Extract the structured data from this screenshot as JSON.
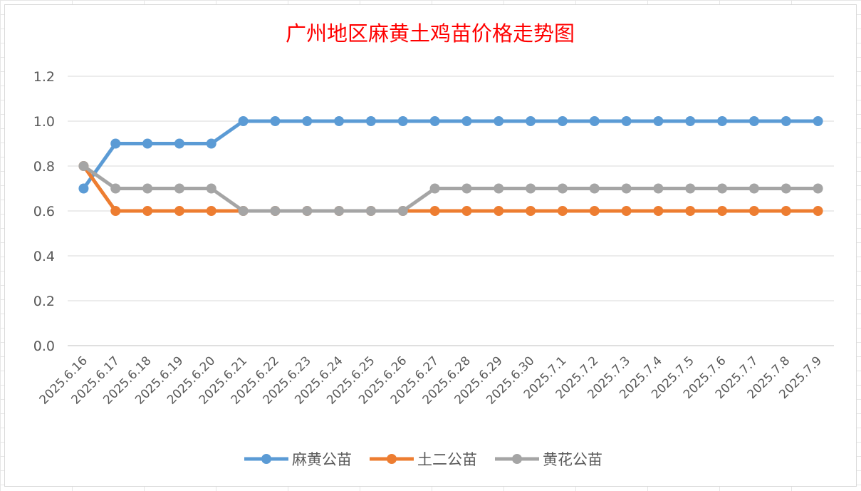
{
  "chart_data": {
    "type": "line",
    "title": "广州地区麻黄土鸡苗价格走势图",
    "xlabel": "",
    "ylabel": "",
    "categories": [
      "2025.6.16",
      "2025.6.17",
      "2025.6.18",
      "2025.6.19",
      "2025.6.20",
      "2025.6.21",
      "2025.6.22",
      "2025.6.23",
      "2025.6.24",
      "2025.6.25",
      "2025.6.26",
      "2025.6.27",
      "2025.6.28",
      "2025.6.29",
      "2025.6.30",
      "2025.7.1",
      "2025.7.2",
      "2025.7.3",
      "2025.7.4",
      "2025.7.5",
      "2025.7.6",
      "2025.7.7",
      "2025.7.8",
      "2025.7.9"
    ],
    "yticks": [
      "0.0",
      "0.2",
      "0.4",
      "0.6",
      "0.8",
      "1.0",
      "1.2"
    ],
    "ylim": [
      0,
      1.2
    ],
    "grid": true,
    "legend_position": "bottom",
    "series": [
      {
        "name": "麻黄公苗",
        "color": "#5b9bd5",
        "values": [
          0.7,
          0.9,
          0.9,
          0.9,
          0.9,
          1.0,
          1.0,
          1.0,
          1.0,
          1.0,
          1.0,
          1.0,
          1.0,
          1.0,
          1.0,
          1.0,
          1.0,
          1.0,
          1.0,
          1.0,
          1.0,
          1.0,
          1.0,
          1.0
        ]
      },
      {
        "name": "土二公苗",
        "color": "#ed7d31",
        "values": [
          0.8,
          0.6,
          0.6,
          0.6,
          0.6,
          0.6,
          0.6,
          0.6,
          0.6,
          0.6,
          0.6,
          0.6,
          0.6,
          0.6,
          0.6,
          0.6,
          0.6,
          0.6,
          0.6,
          0.6,
          0.6,
          0.6,
          0.6,
          0.6
        ]
      },
      {
        "name": "黄花公苗",
        "color": "#a5a5a5",
        "values": [
          0.8,
          0.7,
          0.7,
          0.7,
          0.7,
          0.6,
          0.6,
          0.6,
          0.6,
          0.6,
          0.6,
          0.7,
          0.7,
          0.7,
          0.7,
          0.7,
          0.7,
          0.7,
          0.7,
          0.7,
          0.7,
          0.7,
          0.7,
          0.7
        ]
      }
    ]
  }
}
